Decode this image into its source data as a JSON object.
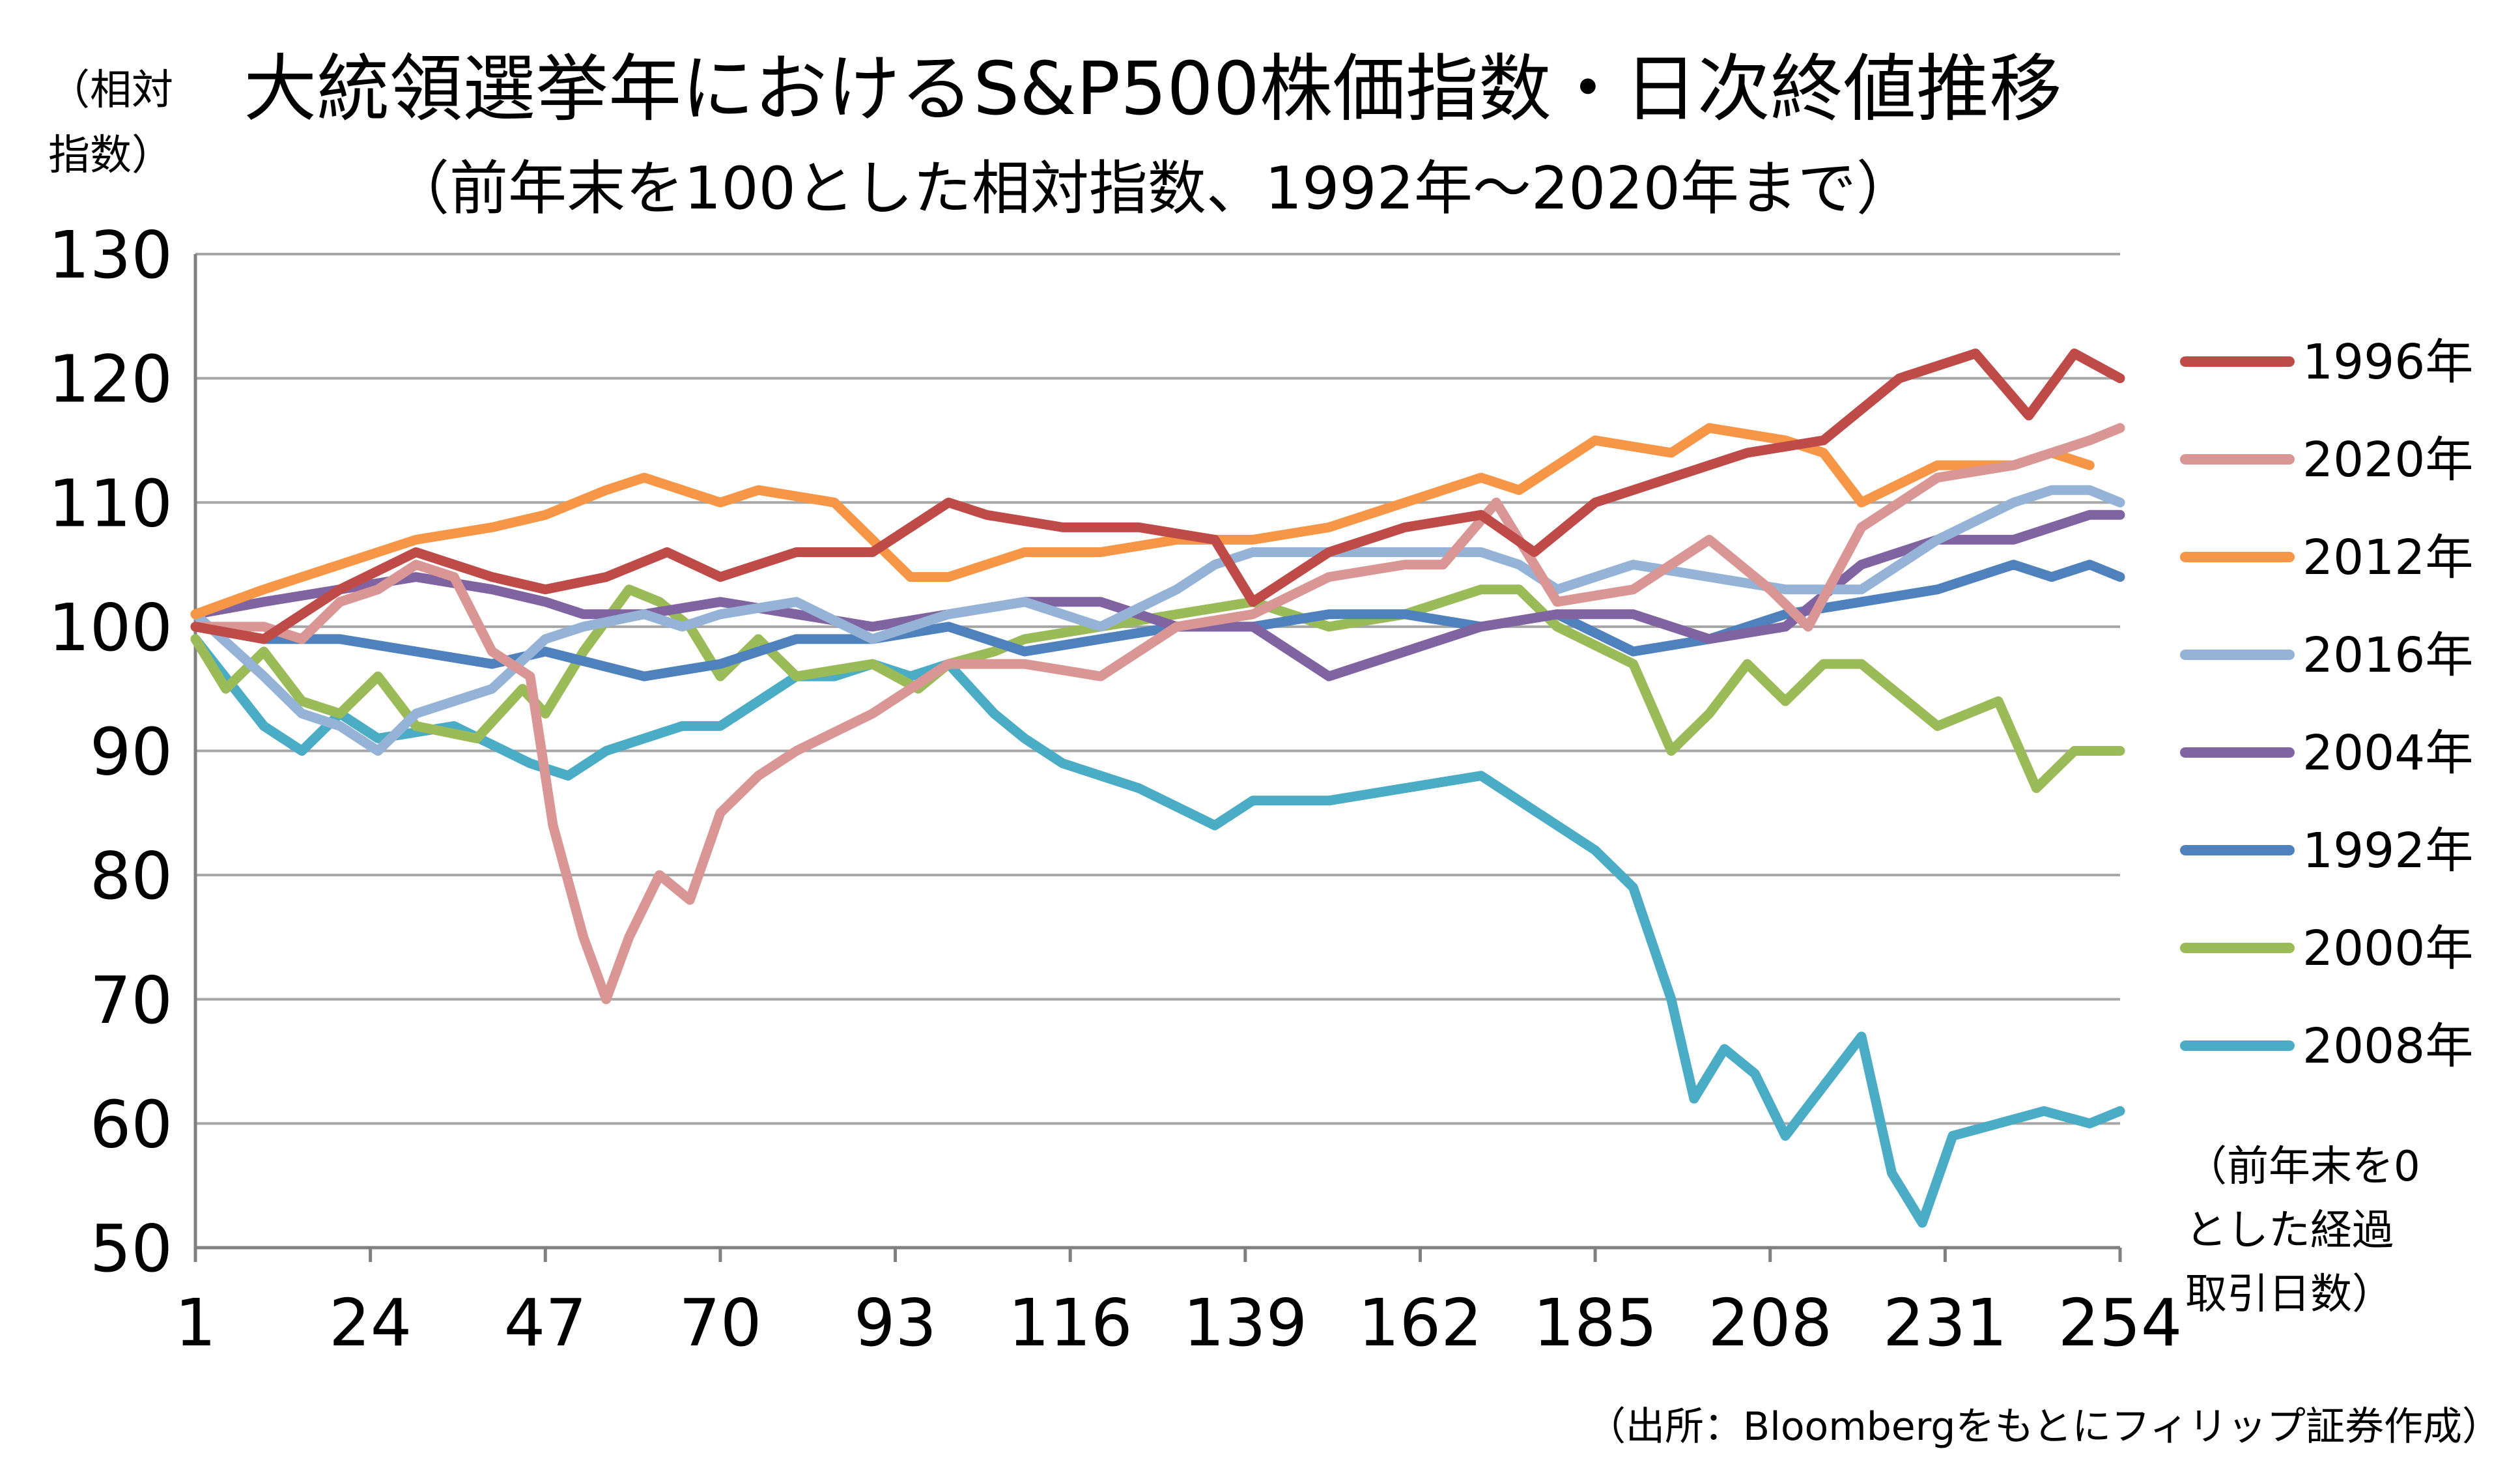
{
  "chart_data": {
    "type": "line",
    "title": "大統領選挙年におけるS&P500株価指数・日次終値推移",
    "subtitle": "（前年末を100とした相対指数、1992年～2020年まで）",
    "ylabel_lines": [
      "（相対",
      "指数）"
    ],
    "xlabel_lines": [
      "（前年末を0",
      "とした経過",
      "取引日数）"
    ],
    "source": "（出所：Bloombergをもとにフィリップ証券作成）",
    "xlim": [
      1,
      254
    ],
    "ylim": [
      50,
      130
    ],
    "xticks": [
      1,
      24,
      47,
      70,
      93,
      116,
      139,
      162,
      185,
      208,
      231,
      254
    ],
    "yticks": [
      50,
      60,
      70,
      80,
      90,
      100,
      110,
      120,
      130
    ],
    "grid": "horizontal",
    "legend_position": "right",
    "series": [
      {
        "name": "1996年",
        "color": "#BE4B48",
        "x": [
          1,
          10,
          20,
          30,
          40,
          47,
          55,
          63,
          70,
          80,
          90,
          100,
          105,
          115,
          125,
          135,
          140,
          150,
          160,
          170,
          177,
          185,
          195,
          205,
          215,
          225,
          235,
          242,
          248,
          254
        ],
        "y": [
          100,
          99,
          103,
          106,
          104,
          103,
          104,
          106,
          104,
          106,
          106,
          110,
          109,
          108,
          108,
          107,
          102,
          106,
          108,
          109,
          106,
          110,
          112,
          114,
          115,
          120,
          122,
          117,
          122,
          120
        ]
      },
      {
        "name": "2020年",
        "color": "#D99694",
        "x": [
          1,
          10,
          15,
          20,
          25,
          30,
          35,
          40,
          45,
          48,
          52,
          55,
          58,
          62,
          66,
          70,
          75,
          80,
          90,
          100,
          110,
          120,
          130,
          140,
          150,
          160,
          165,
          172,
          180,
          190,
          200,
          208,
          213,
          220,
          230,
          240,
          245,
          250,
          254
        ],
        "y": [
          100,
          100,
          99,
          102,
          103,
          105,
          104,
          98,
          96,
          84,
          75,
          70,
          75,
          80,
          78,
          85,
          88,
          90,
          93,
          97,
          97,
          96,
          100,
          101,
          104,
          105,
          105,
          110,
          102,
          103,
          107,
          103,
          100,
          108,
          112,
          113,
          114,
          115,
          116
        ]
      },
      {
        "name": "2012年",
        "color": "#F79646",
        "x": [
          1,
          10,
          20,
          30,
          40,
          47,
          55,
          60,
          70,
          75,
          85,
          95,
          100,
          110,
          120,
          130,
          140,
          150,
          160,
          170,
          175,
          185,
          195,
          200,
          210,
          215,
          220,
          230,
          240,
          245,
          250
        ],
        "y": [
          101,
          103,
          105,
          107,
          108,
          109,
          111,
          112,
          110,
          111,
          110,
          104,
          104,
          106,
          106,
          107,
          107,
          108,
          110,
          112,
          111,
          115,
          114,
          116,
          115,
          114,
          110,
          113,
          113,
          114,
          113
        ]
      },
      {
        "name": "2016年",
        "color": "#95B3D7",
        "x": [
          1,
          10,
          15,
          20,
          25,
          30,
          40,
          47,
          52,
          60,
          65,
          70,
          80,
          90,
          100,
          110,
          120,
          130,
          135,
          140,
          150,
          160,
          170,
          175,
          180,
          190,
          200,
          210,
          220,
          230,
          240,
          245,
          250,
          254
        ],
        "y": [
          101,
          96,
          93,
          92,
          90,
          93,
          95,
          99,
          100,
          101,
          100,
          101,
          102,
          99,
          101,
          102,
          100,
          103,
          105,
          106,
          106,
          106,
          106,
          105,
          103,
          105,
          104,
          103,
          103,
          107,
          110,
          111,
          111,
          110
        ]
      },
      {
        "name": "2004年",
        "color": "#8064A2",
        "x": [
          1,
          10,
          20,
          30,
          40,
          47,
          52,
          60,
          70,
          80,
          90,
          100,
          110,
          120,
          130,
          140,
          150,
          160,
          165,
          170,
          180,
          190,
          200,
          210,
          220,
          230,
          240,
          250,
          254
        ],
        "y": [
          101,
          102,
          103,
          104,
          103,
          102,
          101,
          101,
          102,
          101,
          100,
          101,
          102,
          102,
          100,
          100,
          96,
          98,
          99,
          100,
          101,
          101,
          99,
          100,
          105,
          107,
          107,
          109,
          109
        ]
      },
      {
        "name": "1992年",
        "color": "#4F81BD",
        "x": [
          1,
          10,
          20,
          30,
          40,
          47,
          60,
          70,
          80,
          90,
          100,
          110,
          120,
          130,
          140,
          150,
          160,
          170,
          180,
          190,
          200,
          210,
          220,
          230,
          240,
          245,
          250,
          254
        ],
        "y": [
          100,
          99,
          99,
          98,
          97,
          98,
          96,
          97,
          99,
          99,
          100,
          98,
          99,
          100,
          100,
          101,
          101,
          100,
          101,
          98,
          99,
          101,
          102,
          103,
          105,
          104,
          105,
          104
        ]
      },
      {
        "name": "2000年",
        "color": "#9BBB59",
        "x": [
          1,
          5,
          10,
          15,
          20,
          25,
          30,
          38,
          44,
          47,
          52,
          58,
          62,
          66,
          70,
          75,
          80,
          90,
          96,
          100,
          106,
          110,
          120,
          130,
          140,
          150,
          160,
          170,
          175,
          180,
          190,
          195,
          200,
          205,
          210,
          215,
          220,
          230,
          238,
          243,
          248,
          254
        ],
        "y": [
          99,
          95,
          98,
          94,
          93,
          96,
          92,
          91,
          95,
          93,
          98,
          103,
          102,
          100,
          96,
          99,
          96,
          97,
          95,
          97,
          98,
          99,
          100,
          101,
          102,
          100,
          101,
          103,
          103,
          100,
          97,
          90,
          93,
          97,
          94,
          97,
          97,
          92,
          94,
          87,
          90,
          90
        ]
      },
      {
        "name": "2008年",
        "color": "#4BACC6",
        "x": [
          1,
          10,
          15,
          20,
          25,
          35,
          45,
          50,
          55,
          60,
          65,
          70,
          75,
          80,
          85,
          90,
          95,
          100,
          106,
          110,
          115,
          125,
          135,
          140,
          150,
          160,
          170,
          175,
          185,
          190,
          195,
          198,
          202,
          206,
          210,
          215,
          220,
          224,
          228,
          232,
          238,
          244,
          250,
          254
        ],
        "y": [
          99,
          92,
          90,
          93,
          91,
          92,
          89,
          88,
          90,
          91,
          92,
          92,
          94,
          96,
          96,
          97,
          96,
          97,
          93,
          91,
          89,
          87,
          84,
          86,
          86,
          87,
          88,
          86,
          82,
          79,
          70,
          62,
          66,
          64,
          59,
          63,
          67,
          56,
          52,
          59,
          60,
          61,
          60,
          61
        ]
      }
    ]
  }
}
